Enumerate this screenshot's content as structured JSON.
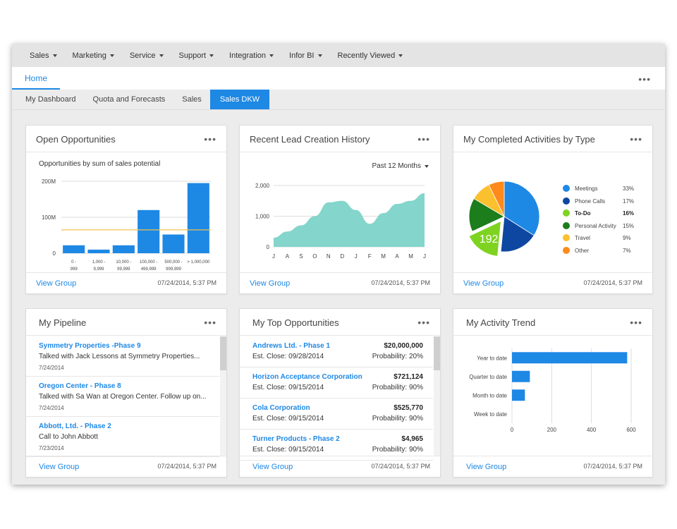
{
  "topnav": [
    {
      "label": "Sales",
      "caret": true
    },
    {
      "label": "Marketing",
      "caret": true
    },
    {
      "label": "Service",
      "caret": true
    },
    {
      "label": "Support",
      "caret": true
    },
    {
      "label": "Integration",
      "caret": true
    },
    {
      "label": "Infor BI",
      "caret": true
    },
    {
      "label": "Recently Viewed",
      "caret": true
    }
  ],
  "home_tab": "Home",
  "subtabs": [
    {
      "label": "My Dashboard",
      "active": false
    },
    {
      "label": "Quota and Forecasts",
      "active": false
    },
    {
      "label": "Sales",
      "active": false
    },
    {
      "label": "Sales DKW",
      "active": true
    }
  ],
  "footer": {
    "view_group": "View Group",
    "timestamp": "07/24/2014, 5:37 PM"
  },
  "open_opportunities": {
    "title": "Open Opportunities",
    "chart_data": {
      "type": "bar",
      "title": "Opportunities by sum of sales potential",
      "categories": [
        [
          "0 -",
          "999"
        ],
        [
          "1,000 -",
          "9,999"
        ],
        [
          "10,000 -",
          "99,999"
        ],
        [
          "100,000 -",
          "499,999"
        ],
        [
          "500,000 -",
          "999,999"
        ],
        [
          "> 1,000,000",
          ""
        ]
      ],
      "values": [
        22,
        10,
        22,
        120,
        52,
        195
      ],
      "ylim": [
        0,
        200
      ],
      "yticks": [
        {
          "value": 0,
          "label": "0"
        },
        {
          "value": 100,
          "label": "100M"
        },
        {
          "value": 200,
          "label": "200M"
        }
      ],
      "reference_line": 65,
      "bar_color": "#1e88e5",
      "reference_color": "#f2c14e"
    }
  },
  "lead_history": {
    "title": "Recent Lead Creation History",
    "period": "Past 12 Months",
    "chart_data": {
      "type": "area",
      "categories": [
        "J",
        "A",
        "S",
        "O",
        "N",
        "D",
        "J",
        "F",
        "M",
        "A",
        "M",
        "J"
      ],
      "values": [
        300,
        500,
        700,
        1000,
        1450,
        1500,
        1200,
        750,
        1100,
        1400,
        1500,
        1750
      ],
      "ylim": [
        0,
        2000
      ],
      "yticks": [
        {
          "value": 0,
          "label": "0"
        },
        {
          "value": 1000,
          "label": "1,000"
        },
        {
          "value": 2000,
          "label": "2,000"
        }
      ],
      "fill_color": "#7dd3c8"
    }
  },
  "completed_activities": {
    "title": "My Completed Activities by Type",
    "center_value": "192",
    "chart_data": {
      "type": "pie",
      "slices": [
        {
          "name": "Meetings",
          "pct": "33%",
          "value": 33,
          "color": "#1e88e5"
        },
        {
          "name": "Phone Calls",
          "pct": "17%",
          "value": 17,
          "color": "#0d47a1"
        },
        {
          "name": "To-Do",
          "pct": "16%",
          "value": 16,
          "color": "#7ed321",
          "highlight": true
        },
        {
          "name": "Personal Activity",
          "pct": "15%",
          "value": 15,
          "color": "#1b7d1b"
        },
        {
          "name": "Travel",
          "pct": "9%",
          "value": 9,
          "color": "#fbc02d"
        },
        {
          "name": "Other",
          "pct": "7%",
          "value": 7,
          "color": "#ff8a1c"
        }
      ]
    }
  },
  "pipeline": {
    "title": "My Pipeline",
    "items": [
      {
        "title": "Symmetry Properties -Phase 9",
        "desc": "Talked with Jack Lessons at Symmetry Properties...",
        "date": "7/24/2014"
      },
      {
        "title": "Oregon Center - Phase 8",
        "desc": "Talked with Sa Wan at Oregon Center. Follow up on...",
        "date": "7/24/2014"
      },
      {
        "title": "Abbott, Ltd. - Phase 2",
        "desc": "Call to John Abbott",
        "date": "7/23/2014"
      }
    ]
  },
  "top_opportunities": {
    "title": "My Top Opportunities",
    "items": [
      {
        "title": "Andrews Ltd. - Phase 1",
        "amount": "$20,000,000",
        "close": "Est. Close: 09/28/2014",
        "prob": "Probability: 20%"
      },
      {
        "title": "Horizon Acceptance Corporation",
        "amount": "$721,124",
        "close": "Est. Close: 09/15/2014",
        "prob": "Probability: 90%"
      },
      {
        "title": "Cola Corporation",
        "amount": "$525,770",
        "close": "Est. Close: 09/15/2014",
        "prob": "Probability: 90%"
      },
      {
        "title": "Turner Products - Phase 2",
        "amount": "$4,965",
        "close": "Est. Close: 09/15/2014",
        "prob": "Probability: 90%"
      }
    ]
  },
  "activity_trend": {
    "title": "My Activity Trend",
    "chart_data": {
      "type": "bar",
      "orientation": "horizontal",
      "categories": [
        "Year to date",
        "Quarter to date",
        "Month to date",
        "Week to date"
      ],
      "values": [
        580,
        90,
        65,
        0
      ],
      "xlim": [
        0,
        600
      ],
      "xticks": [
        {
          "value": 0,
          "label": "0"
        },
        {
          "value": 200,
          "label": "200"
        },
        {
          "value": 400,
          "label": "400"
        },
        {
          "value": 600,
          "label": "600"
        }
      ],
      "bar_color": "#1e88e5"
    }
  }
}
